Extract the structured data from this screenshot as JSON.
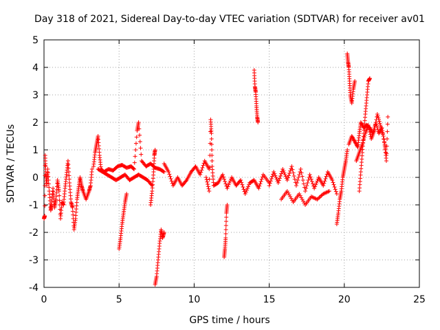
{
  "chart_data": {
    "type": "scatter",
    "title": "Day 318 of 2021, Sidereal Day-to-day VTEC variation (SDTVAR) for receiver av01",
    "xlabel": "GPS time / hours",
    "ylabel": "SDTVAR / TECUs",
    "xlim": [
      0,
      25
    ],
    "ylim": [
      -4,
      5
    ],
    "xticks": [
      0,
      5,
      10,
      15,
      20,
      25
    ],
    "yticks": [
      -4,
      -3,
      -2,
      -1,
      0,
      1,
      2,
      3,
      4,
      5
    ],
    "grid": true,
    "marker": "plus",
    "color": "#ff0000",
    "series": [
      {
        "name": "SDTVAR",
        "segments": [
          [
            [
              0.0,
              -1.5
            ],
            [
              0.05,
              -1.4
            ],
            [
              0.08,
              0.8
            ],
            [
              0.12,
              0.2
            ],
            [
              0.18,
              -0.3
            ],
            [
              0.25,
              0.3
            ],
            [
              0.35,
              -0.5
            ],
            [
              0.45,
              -1.2
            ],
            [
              0.5,
              -1.0
            ],
            [
              0.6,
              -0.4
            ],
            [
              0.7,
              -1.1
            ],
            [
              0.8,
              -0.8
            ],
            [
              0.9,
              -0.1
            ],
            [
              1.0,
              -0.5
            ],
            [
              1.1,
              -1.5
            ],
            [
              1.2,
              -0.9
            ],
            [
              1.3,
              -1.0
            ],
            [
              1.4,
              -0.4
            ],
            [
              1.5,
              0.1
            ],
            [
              1.6,
              0.6
            ],
            [
              1.7,
              -0.2
            ],
            [
              1.8,
              -0.9
            ],
            [
              1.9,
              -1.1
            ],
            [
              2.0,
              -1.9
            ],
            [
              2.1,
              -1.5
            ],
            [
              2.2,
              -0.8
            ],
            [
              2.3,
              -0.4
            ],
            [
              2.4,
              0.0
            ],
            [
              2.5,
              -0.3
            ],
            [
              2.6,
              -0.5
            ],
            [
              2.8,
              -0.8
            ],
            [
              3.0,
              -0.5
            ],
            [
              3.1,
              -0.3
            ],
            [
              3.2,
              0.3
            ]
          ],
          [
            [
              3.3,
              0.4
            ],
            [
              3.4,
              0.9
            ],
            [
              3.5,
              1.2
            ],
            [
              3.6,
              1.5
            ],
            [
              3.7,
              0.8
            ],
            [
              3.8,
              0.3
            ],
            [
              4.0,
              0.2
            ],
            [
              4.3,
              0.3
            ],
            [
              4.6,
              0.25
            ],
            [
              4.9,
              0.4
            ],
            [
              5.2,
              0.45
            ],
            [
              5.5,
              0.35
            ],
            [
              5.8,
              0.4
            ],
            [
              6.0,
              0.3
            ],
            [
              6.2,
              1.7
            ],
            [
              6.3,
              2.0
            ],
            [
              6.5,
              0.6
            ],
            [
              6.8,
              0.4
            ],
            [
              7.1,
              0.5
            ],
            [
              7.4,
              0.35
            ],
            [
              7.7,
              0.3
            ],
            [
              8.0,
              0.2
            ]
          ],
          [
            [
              3.6,
              0.3
            ],
            [
              3.9,
              0.2
            ],
            [
              4.2,
              0.1
            ],
            [
              4.5,
              0.0
            ],
            [
              4.8,
              -0.1
            ],
            [
              5.1,
              0.0
            ],
            [
              5.4,
              0.1
            ],
            [
              5.7,
              -0.1
            ],
            [
              6.0,
              0.0
            ],
            [
              6.3,
              0.1
            ],
            [
              6.6,
              0.0
            ],
            [
              6.9,
              -0.1
            ],
            [
              7.2,
              -0.3
            ]
          ],
          [
            [
              5.0,
              -2.6
            ],
            [
              5.1,
              -2.2
            ],
            [
              5.2,
              -1.7
            ],
            [
              5.3,
              -1.3
            ],
            [
              5.4,
              -0.9
            ],
            [
              5.5,
              -0.6
            ]
          ],
          [
            [
              7.1,
              -1.0
            ],
            [
              7.2,
              -0.5
            ],
            [
              7.3,
              0.2
            ],
            [
              7.35,
              0.8
            ],
            [
              7.4,
              1.0
            ]
          ],
          [
            [
              7.4,
              -3.9
            ],
            [
              7.5,
              -3.6
            ],
            [
              7.6,
              -3.0
            ],
            [
              7.7,
              -2.4
            ],
            [
              7.8,
              -1.9
            ],
            [
              7.9,
              -2.2
            ],
            [
              8.0,
              -2.0
            ]
          ],
          [
            [
              8.0,
              0.5
            ],
            [
              8.3,
              0.2
            ],
            [
              8.6,
              -0.3
            ],
            [
              8.9,
              0.0
            ],
            [
              9.2,
              -0.3
            ],
            [
              9.5,
              -0.1
            ],
            [
              9.8,
              0.2
            ],
            [
              10.1,
              0.4
            ],
            [
              10.4,
              0.1
            ],
            [
              10.7,
              0.6
            ],
            [
              11.0,
              0.3
            ]
          ],
          [
            [
              10.8,
              0.0
            ],
            [
              11.0,
              -0.5
            ],
            [
              11.1,
              2.1
            ],
            [
              11.15,
              1.6
            ],
            [
              11.2,
              0.4
            ],
            [
              11.3,
              -0.3
            ],
            [
              11.6,
              -0.2
            ],
            [
              11.9,
              0.1
            ],
            [
              12.2,
              -0.4
            ],
            [
              12.5,
              0.0
            ],
            [
              12.8,
              -0.3
            ],
            [
              13.1,
              -0.1
            ],
            [
              13.4,
              -0.6
            ],
            [
              13.7,
              -0.2
            ],
            [
              14.0,
              -0.1
            ],
            [
              14.3,
              -0.4
            ],
            [
              14.6,
              0.1
            ],
            [
              15.0,
              -0.2
            ]
          ],
          [
            [
              12.0,
              -2.9
            ],
            [
              12.05,
              -2.6
            ],
            [
              12.1,
              -2.2
            ],
            [
              12.15,
              -1.3
            ],
            [
              12.2,
              -1.0
            ]
          ],
          [
            [
              14.0,
              3.9
            ],
            [
              14.05,
              3.3
            ],
            [
              14.1,
              3.1
            ],
            [
              14.15,
              2.6
            ],
            [
              14.2,
              2.2
            ],
            [
              14.25,
              2.0
            ]
          ],
          [
            [
              15.0,
              -0.3
            ],
            [
              15.3,
              0.2
            ],
            [
              15.6,
              -0.2
            ],
            [
              15.9,
              0.3
            ],
            [
              16.2,
              -0.1
            ],
            [
              16.5,
              0.4
            ],
            [
              16.8,
              -0.3
            ],
            [
              17.1,
              0.3
            ],
            [
              17.4,
              -0.5
            ],
            [
              17.7,
              0.1
            ],
            [
              18.0,
              -0.4
            ],
            [
              18.3,
              0.0
            ],
            [
              18.6,
              -0.3
            ],
            [
              18.9,
              0.2
            ],
            [
              19.2,
              -0.1
            ],
            [
              19.5,
              -0.6
            ]
          ],
          [
            [
              15.8,
              -0.8
            ],
            [
              16.2,
              -0.5
            ],
            [
              16.6,
              -0.9
            ],
            [
              17.0,
              -0.6
            ],
            [
              17.4,
              -1.0
            ],
            [
              17.8,
              -0.7
            ],
            [
              18.2,
              -0.8
            ],
            [
              18.6,
              -0.6
            ],
            [
              19.0,
              -0.5
            ]
          ],
          [
            [
              19.5,
              -1.7
            ],
            [
              19.6,
              -1.3
            ],
            [
              19.7,
              -0.8
            ],
            [
              19.8,
              -0.5
            ],
            [
              19.9,
              0.0
            ],
            [
              20.0,
              0.3
            ],
            [
              20.1,
              0.6
            ],
            [
              20.2,
              1.0
            ]
          ],
          [
            [
              20.2,
              4.5
            ],
            [
              20.25,
              4.2
            ],
            [
              20.3,
              4.0
            ],
            [
              20.35,
              3.5
            ],
            [
              20.4,
              3.0
            ],
            [
              20.5,
              2.7
            ],
            [
              20.6,
              3.2
            ],
            [
              20.7,
              3.5
            ]
          ],
          [
            [
              20.3,
              1.2
            ],
            [
              20.5,
              1.5
            ],
            [
              20.7,
              1.3
            ],
            [
              20.9,
              1.1
            ],
            [
              21.0,
              1.6
            ],
            [
              21.1,
              2.0
            ],
            [
              21.3,
              1.8
            ],
            [
              21.5,
              1.9
            ],
            [
              21.7,
              1.8
            ],
            [
              21.9,
              1.6
            ],
            [
              22.1,
              2.0
            ],
            [
              22.3,
              1.6
            ],
            [
              22.5,
              1.8
            ],
            [
              22.7,
              1.2
            ],
            [
              22.8,
              0.6
            ],
            [
              22.9,
              2.2
            ]
          ],
          [
            [
              21.0,
              -0.5
            ],
            [
              21.1,
              0.2
            ],
            [
              21.2,
              0.9
            ],
            [
              21.3,
              1.6
            ],
            [
              21.4,
              2.3
            ],
            [
              21.5,
              2.9
            ],
            [
              21.6,
              3.5
            ],
            [
              21.7,
              3.6
            ]
          ],
          [
            [
              20.8,
              0.6
            ],
            [
              21.0,
              0.9
            ],
            [
              21.2,
              1.2
            ],
            [
              21.4,
              1.6
            ],
            [
              21.6,
              1.9
            ],
            [
              21.8,
              1.4
            ],
            [
              22.0,
              1.7
            ],
            [
              22.2,
              2.3
            ],
            [
              22.4,
              1.9
            ],
            [
              22.6,
              1.5
            ],
            [
              22.8,
              0.8
            ]
          ]
        ]
      }
    ]
  }
}
